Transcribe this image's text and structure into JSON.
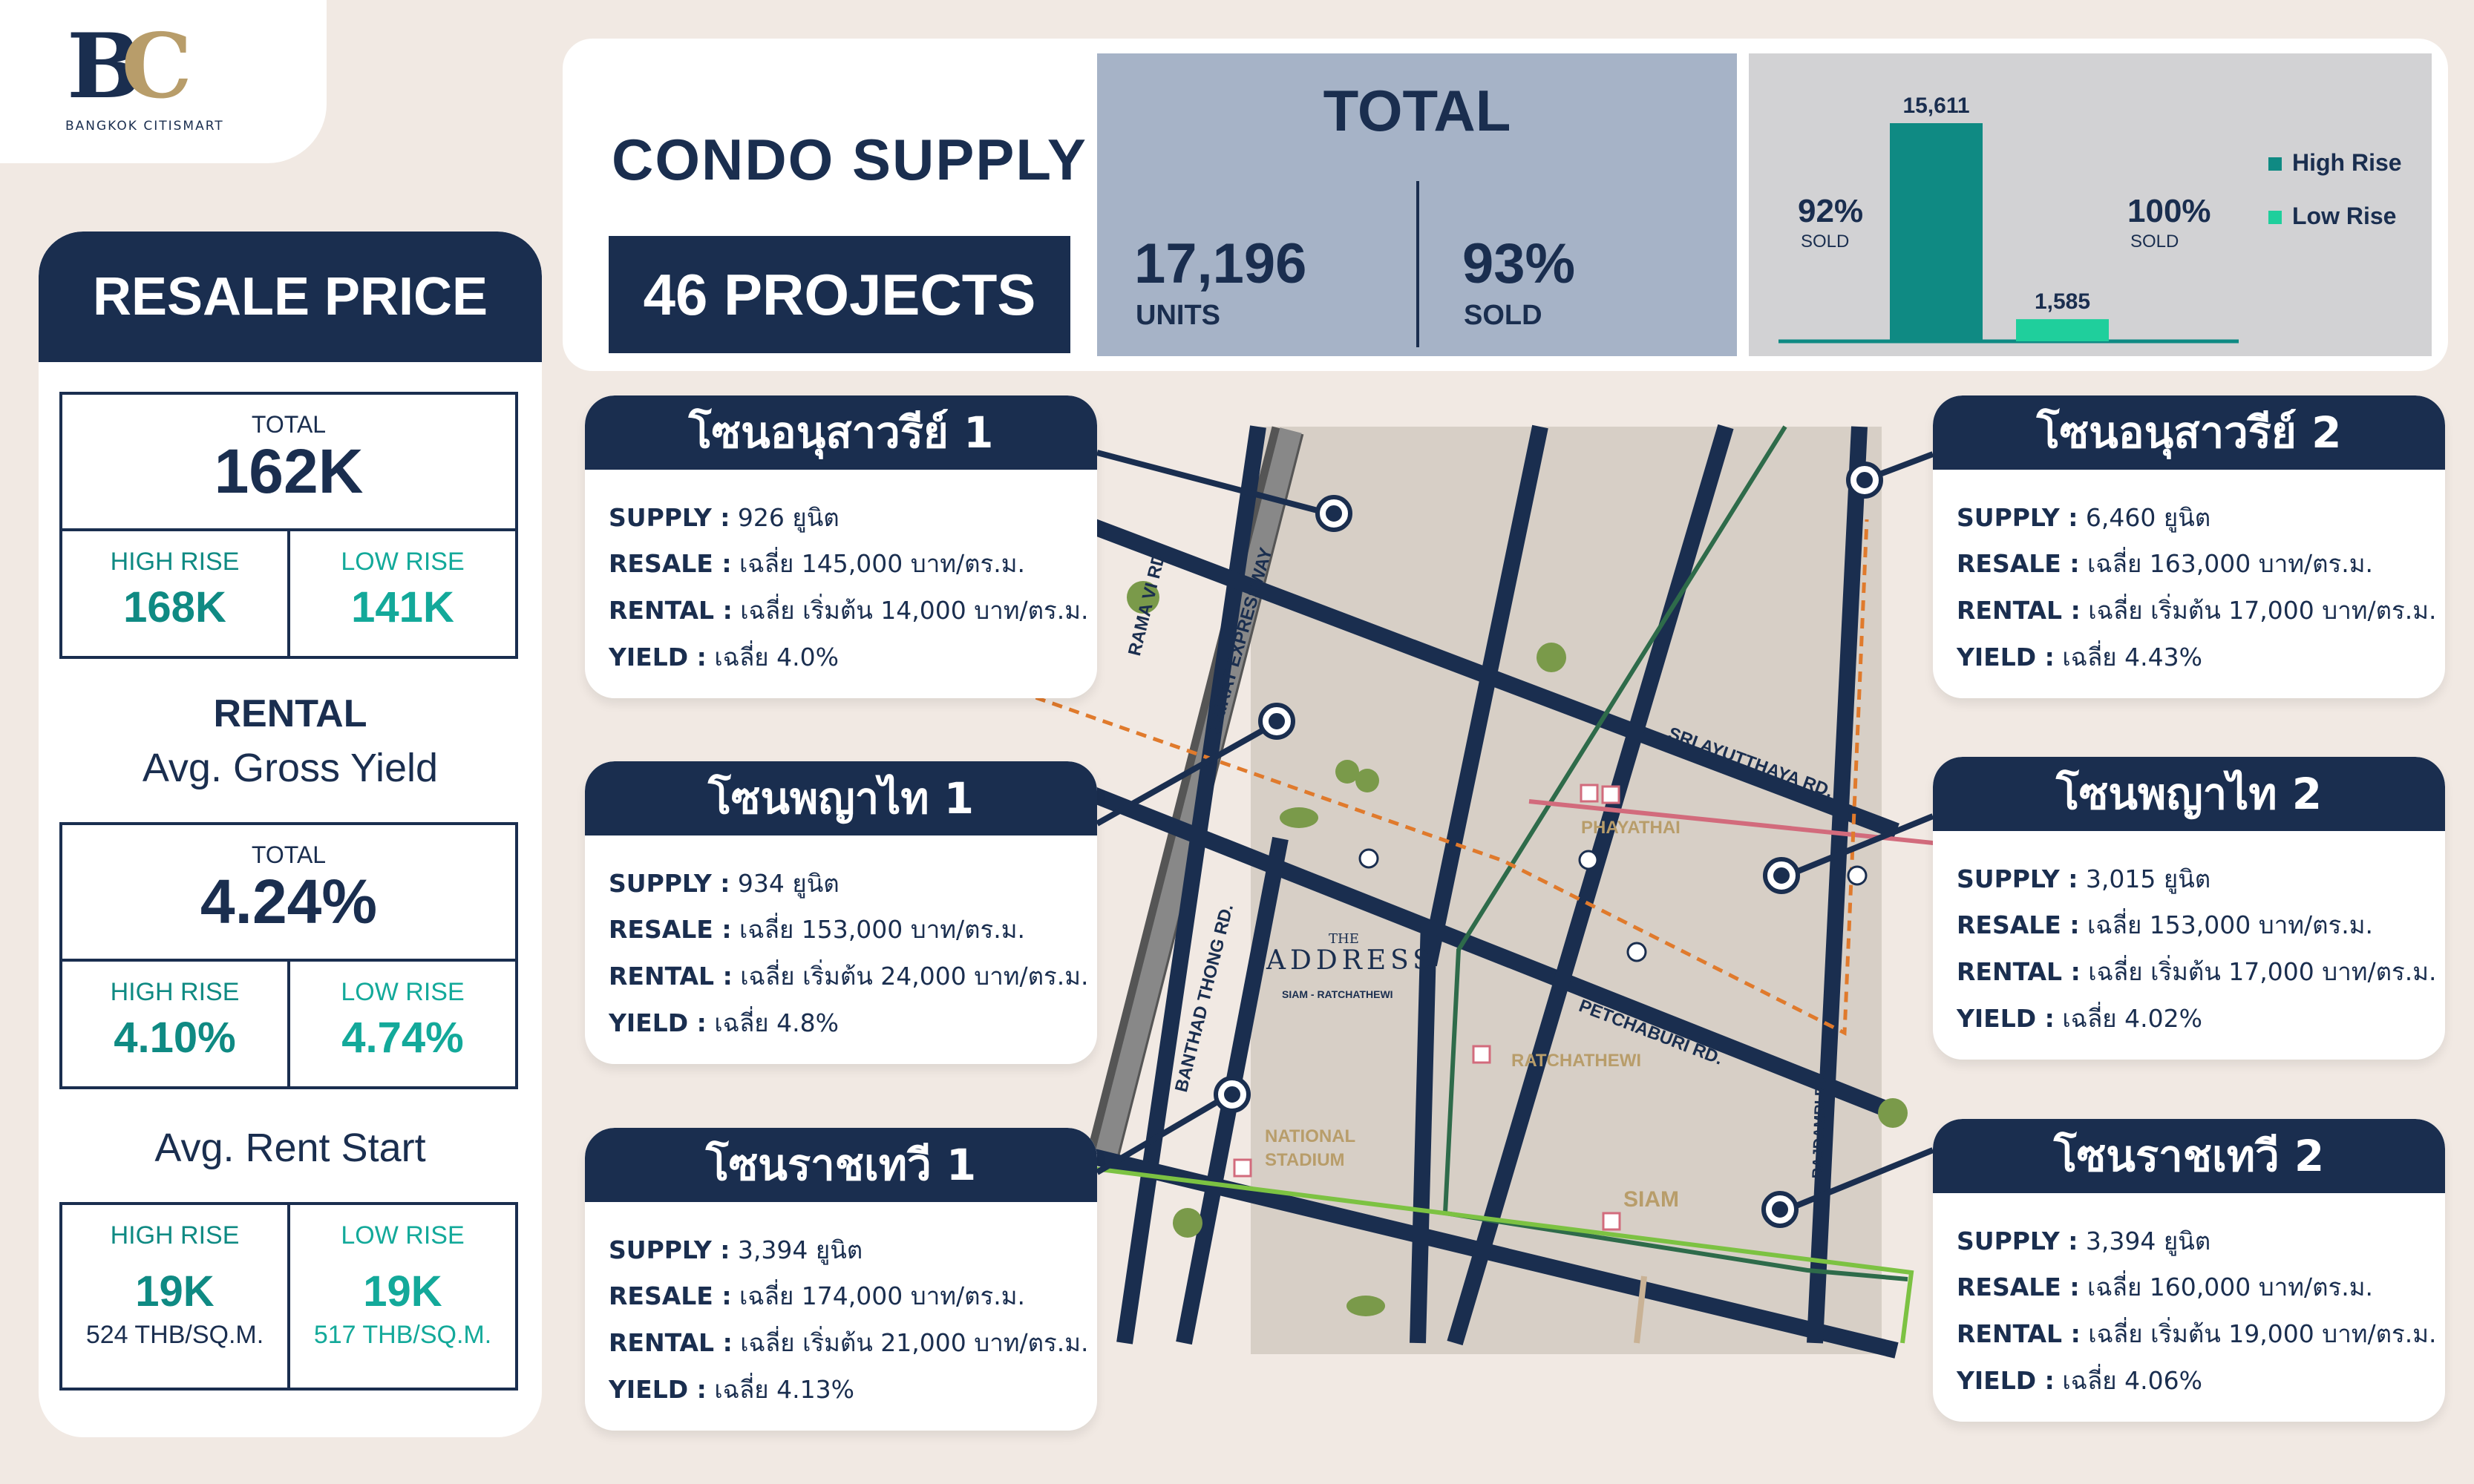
{
  "logo": {
    "mark_b": "B",
    "mark_c": "C",
    "subtitle": "BANGKOK CITISMART"
  },
  "resale_panel": {
    "title": "RESALE PRICE",
    "resale": {
      "total_label": "TOTAL",
      "total_value": "162K",
      "high_label": "HIGH RISE",
      "high_value": "168K",
      "low_label": "LOW RISE",
      "low_value": "141K"
    },
    "rental_title": "RENTAL",
    "yield_title": "Avg. Gross Yield",
    "yield": {
      "total_label": "TOTAL",
      "total_value": "4.24%",
      "high_label": "HIGH RISE",
      "high_value": "4.10%",
      "low_label": "LOW RISE",
      "low_value": "4.74%"
    },
    "rent_start_title": "Avg. Rent Start",
    "rent_start": {
      "high_label": "HIGH RISE",
      "high_value": "19K",
      "high_sub": "524 THB/SQ.M.",
      "low_label": "LOW RISE",
      "low_value": "19K",
      "low_sub": "517 THB/SQ.M."
    }
  },
  "supply": {
    "title": "CONDO SUPPLY",
    "projects": "46 PROJECTS",
    "total_title": "TOTAL",
    "units_value": "17,196",
    "units_label": "UNITS",
    "sold_value": "93%",
    "sold_label": "SOLD"
  },
  "chart_data": {
    "type": "bar",
    "categories": [
      "High Rise",
      "Low Rise"
    ],
    "values": [
      15611,
      1585
    ],
    "value_labels": [
      "15,611",
      "1,585"
    ],
    "sold_pct": [
      "92%",
      "100%"
    ],
    "sold_label": "SOLD",
    "legend": [
      "High Rise",
      "Low Rise"
    ],
    "colors": [
      "#0f8a83",
      "#1fcf9c"
    ],
    "legend_position": "right",
    "ylim": [
      0,
      15611
    ]
  },
  "map": {
    "roads": {
      "rama6": "RAMA VI RD.",
      "expressway": "SRIRAT EXPRESSWAY",
      "sri_ayutthaya": "SRI AYUTTHAYA RD.",
      "banthad_thong": "BANTHAD THONG RD.",
      "petchaburi": "PETCHABURI RD.",
      "rajdamri": "RAJDAMRI RD."
    },
    "stations": {
      "phayathai": "PHAYATHAI",
      "ratchathewi": "RATCHATHEWI",
      "national_stadium_1": "NATIONAL",
      "national_stadium_2": "STADIUM",
      "siam": "SIAM"
    },
    "project": {
      "pre": "THE",
      "name": "ADDRESS",
      "sub": "SIAM - RATCHATHEWI"
    },
    "colors": {
      "road": "#1a2e4f",
      "expressway": "#555555",
      "bts_green": "#2e6b4a",
      "bts_light": "#7cc242",
      "arl": "#d26b7c",
      "mrt": "#e07a2c"
    }
  },
  "zones": [
    {
      "name": "โซนอนุสาวรีย์ 1",
      "supply_key": "SUPPLY :",
      "supply": " 926 ยูนิต",
      "resale_key": "RESALE :",
      "resale": " เฉลี่ย 145,000 บาท/ตร.ม.",
      "rental_key": "RENTAL :",
      "rental": " เฉลี่ย เริ่มต้น 14,000 บาท/ตร.ม.",
      "yield_key": "YIELD :",
      "yield": " เฉลี่ย 4.0%"
    },
    {
      "name": "โซนพญาไท 1",
      "supply_key": "SUPPLY :",
      "supply": " 934 ยูนิต",
      "resale_key": "RESALE :",
      "resale": " เฉลี่ย 153,000 บาท/ตร.ม.",
      "rental_key": "RENTAL :",
      "rental": " เฉลี่ย เริ่มต้น 24,000 บาท/ตร.ม.",
      "yield_key": "YIELD :",
      "yield": " เฉลี่ย 4.8%"
    },
    {
      "name": "โซนราชเทวี 1",
      "supply_key": "SUPPLY :",
      "supply": " 3,394 ยูนิต",
      "resale_key": "RESALE :",
      "resale": " เฉลี่ย 174,000 บาท/ตร.ม.",
      "rental_key": "RENTAL :",
      "rental": " เฉลี่ย เริ่มต้น 21,000 บาท/ตร.ม.",
      "yield_key": "YIELD :",
      "yield": " เฉลี่ย 4.13%"
    },
    {
      "name": "โซนอนุสาวรีย์ 2",
      "supply_key": "SUPPLY :",
      "supply": " 6,460 ยูนิต",
      "resale_key": "RESALE :",
      "resale": " เฉลี่ย 163,000 บาท/ตร.ม.",
      "rental_key": "RENTAL :",
      "rental": " เฉลี่ย เริ่มต้น 17,000 บาท/ตร.ม.",
      "yield_key": "YIELD :",
      "yield": " เฉลี่ย 4.43%"
    },
    {
      "name": "โซนพญาไท 2",
      "supply_key": "SUPPLY :",
      "supply": " 3,015 ยูนิต",
      "resale_key": "RESALE :",
      "resale": " เฉลี่ย 153,000 บาท/ตร.ม.",
      "rental_key": "RENTAL :",
      "rental": " เฉลี่ย เริ่มต้น 17,000 บาท/ตร.ม.",
      "yield_key": "YIELD :",
      "yield": " เฉลี่ย 4.02%"
    },
    {
      "name": "โซนราชเทวี 2",
      "supply_key": "SUPPLY :",
      "supply": " 3,394 ยูนิต",
      "resale_key": "RESALE :",
      "resale": " เฉลี่ย 160,000 บาท/ตร.ม.",
      "rental_key": "RENTAL :",
      "rental": " เฉลี่ย เริ่มต้น 19,000 บาท/ตร.ม.",
      "yield_key": "YIELD :",
      "yield": " เฉลี่ย 4.06%"
    }
  ]
}
